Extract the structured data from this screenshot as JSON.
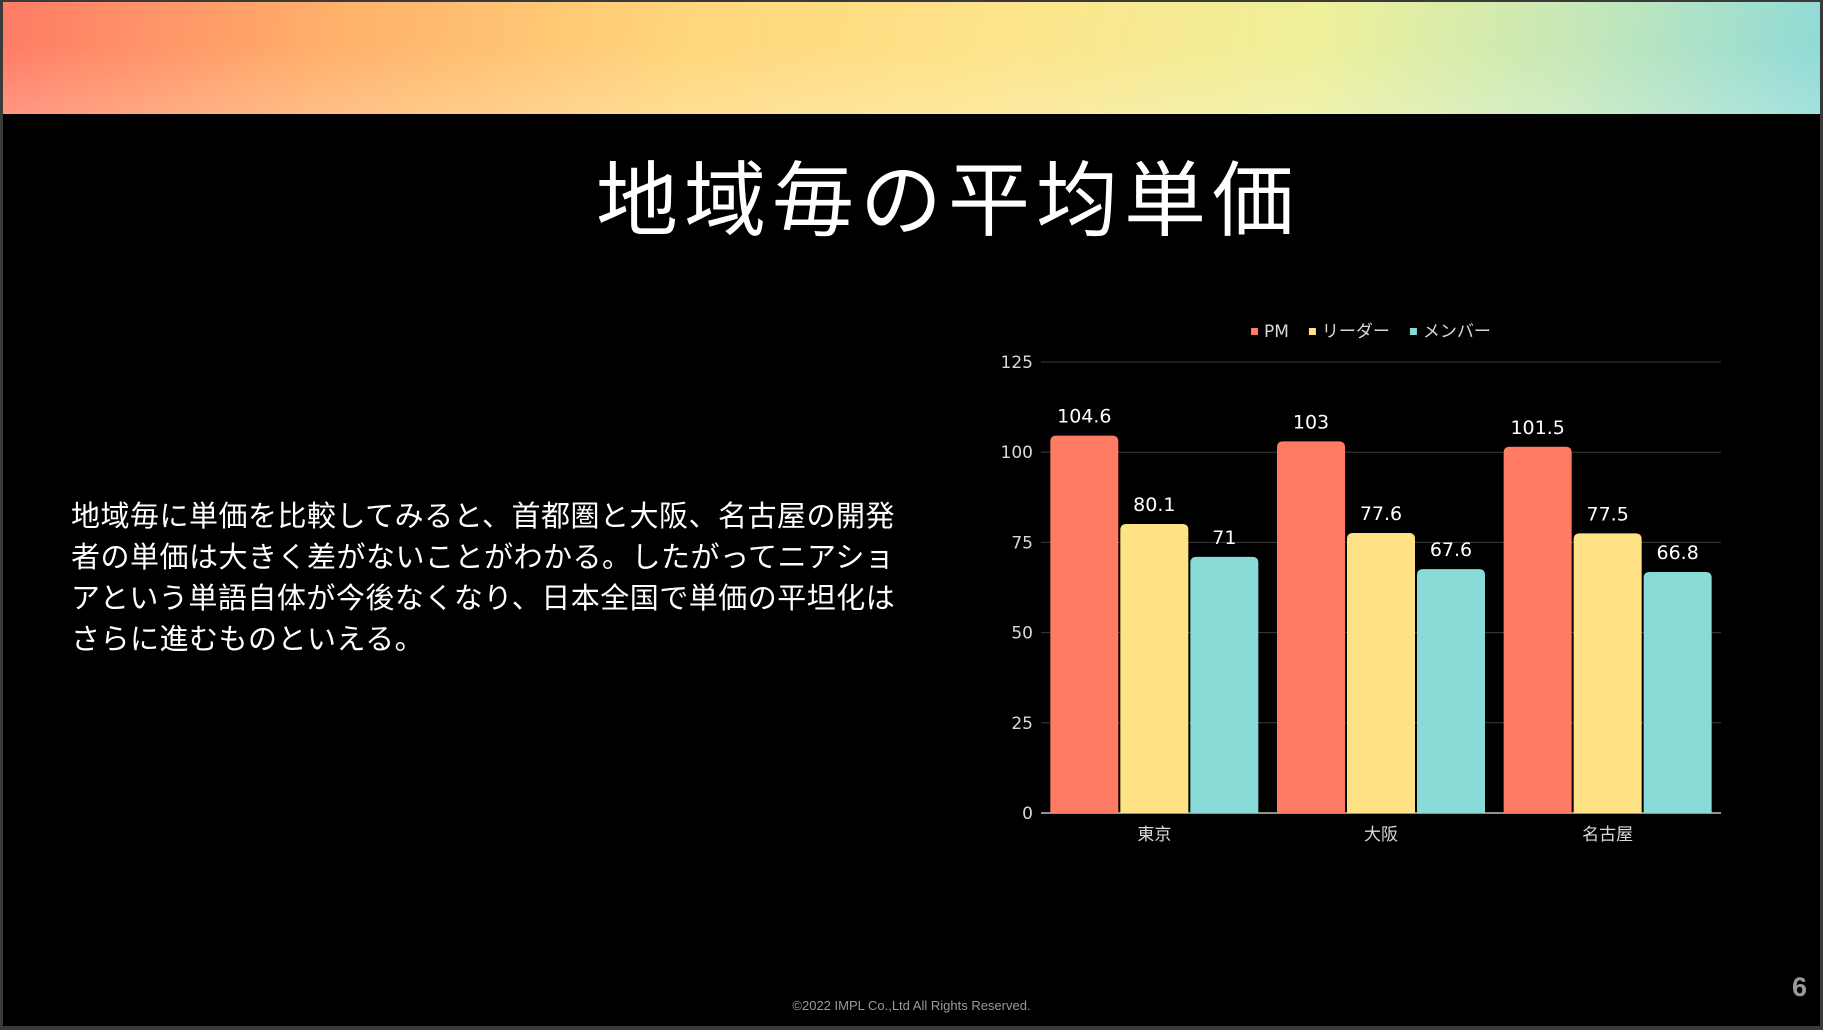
{
  "slide": {
    "title": "地域毎の平均単価",
    "body": "地域毎に単価を比較してみると、首都圏と大阪、名古屋の開発者の単価は大きく差がないことがわかる。したがってニアショアという単語自体が今後なくなり、日本全国で単価の平坦化はさらに進むものといえる。",
    "footer": "©2022 IMPL Co.,Ltd All Rights Reserved.",
    "page_number": "6"
  },
  "colors": {
    "pm": "#ff7b63",
    "leader": "#ffe286",
    "member": "#88dbd6",
    "grid": "#3c3c3c",
    "axis_text": "#d9d9d9",
    "label_text": "#ffffff"
  },
  "chart_data": {
    "type": "bar",
    "categories": [
      "東京",
      "大阪",
      "名古屋"
    ],
    "series": [
      {
        "name": "PM",
        "values": [
          104.6,
          103,
          101.5
        ]
      },
      {
        "name": "リーダー",
        "values": [
          80.1,
          77.6,
          77.5
        ]
      },
      {
        "name": "メンバー",
        "values": [
          71,
          67.6,
          66.8
        ]
      }
    ],
    "ylim": [
      0,
      125
    ],
    "yticks": [
      0,
      25,
      50,
      75,
      100,
      125
    ],
    "grid": true,
    "legend": "top-center"
  }
}
